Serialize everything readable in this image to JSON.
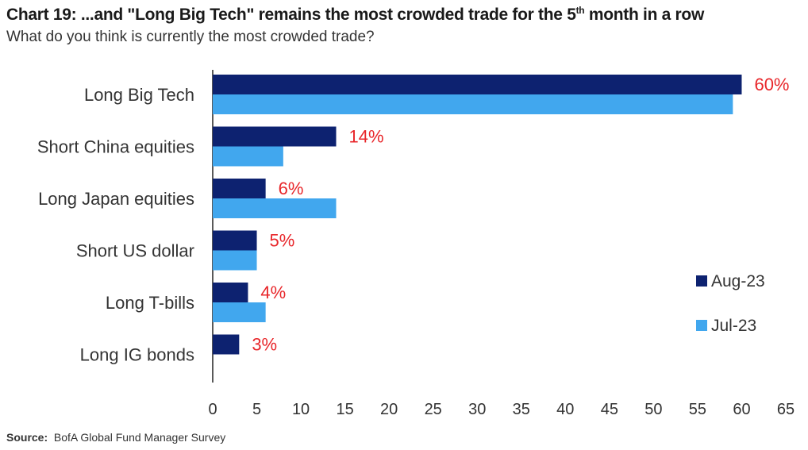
{
  "header": {
    "title_main": "Chart 19: ...and \"Long Big Tech\" remains the most crowded trade for the 5",
    "title_sup": "th",
    "title_end": " month in a row",
    "subtitle": "What do you think is currently the most crowded trade?"
  },
  "footer": {
    "source_label": "Source:",
    "source_text": "BofA Global Fund Manager Survey"
  },
  "chart_data": {
    "type": "bar",
    "orientation": "horizontal",
    "title": "Chart 19: ...and \"Long Big Tech\" remains the most crowded trade for the 5th month in a row",
    "subtitle": "What do you think is currently the most crowded trade?",
    "categories": [
      "Long Big Tech",
      "Short China equities",
      "Long Japan equities",
      "Short US dollar",
      "Long T-bills",
      "Long IG bonds"
    ],
    "series": [
      {
        "name": "Aug-23",
        "color": "#0d2270",
        "values": [
          60,
          14,
          6,
          5,
          4,
          3
        ]
      },
      {
        "name": "Jul-23",
        "color": "#41a7ee",
        "values": [
          59,
          8,
          14,
          5,
          6,
          0
        ]
      }
    ],
    "data_labels": [
      "60%",
      "14%",
      "6%",
      "5%",
      "4%",
      "3%"
    ],
    "data_label_color": "#e8262a",
    "xlim": [
      0,
      65
    ],
    "xticks": [
      0,
      5,
      10,
      15,
      20,
      25,
      30,
      35,
      40,
      45,
      50,
      55,
      60,
      65
    ],
    "grid": false,
    "legend_position": "right"
  }
}
